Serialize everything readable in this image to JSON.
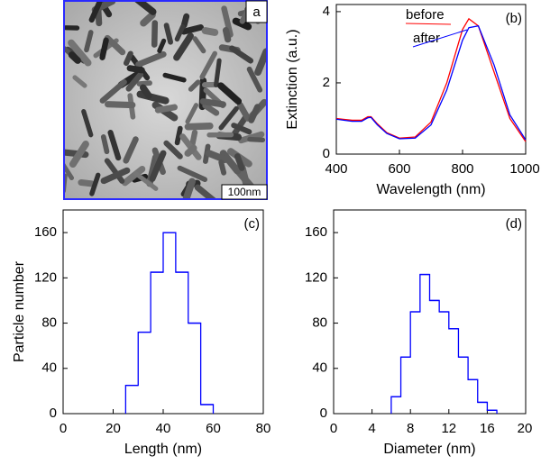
{
  "image": {
    "label": "a",
    "scale_bar": "100nm"
  },
  "chart_data": [
    {
      "type": "line",
      "panel_label": "(b)",
      "xlabel": "Wavelength (nm)",
      "ylabel": "Extinction (a.u.)",
      "x": [
        400,
        450,
        480,
        500,
        510,
        530,
        560,
        600,
        650,
        700,
        750,
        800,
        820,
        850,
        900,
        950,
        1000
      ],
      "series": [
        {
          "name": "before",
          "color": "#ff0000",
          "values": [
            1.0,
            0.95,
            0.95,
            1.05,
            1.05,
            0.85,
            0.6,
            0.45,
            0.48,
            0.9,
            2.0,
            3.5,
            3.8,
            3.6,
            2.3,
            1.0,
            0.35
          ]
        },
        {
          "name": "after",
          "color": "#0000ff",
          "values": [
            0.98,
            0.92,
            0.92,
            1.02,
            1.03,
            0.82,
            0.58,
            0.43,
            0.45,
            0.82,
            1.8,
            3.2,
            3.55,
            3.6,
            2.5,
            1.1,
            0.4
          ]
        }
      ],
      "xlim": [
        400,
        1000
      ],
      "xticks": [
        400,
        600,
        800,
        1000
      ],
      "ylim": [
        0,
        4.2
      ],
      "yticks": [
        0,
        2,
        4
      ]
    },
    {
      "type": "histogram",
      "panel_label": "(c)",
      "xlabel": "Length (nm)",
      "ylabel": "Particle number",
      "color": "#0000ff",
      "bins": [
        25,
        30,
        35,
        40,
        45,
        50,
        55,
        60
      ],
      "values": [
        25,
        72,
        125,
        160,
        125,
        80,
        8
      ],
      "xlim": [
        0,
        80
      ],
      "xticks": [
        0,
        20,
        40,
        60,
        80
      ],
      "ylim": [
        0,
        180
      ],
      "yticks": [
        0,
        40,
        80,
        120,
        160
      ]
    },
    {
      "type": "histogram",
      "panel_label": "(d)",
      "xlabel": "Diameter (nm)",
      "color": "#0000ff",
      "bins": [
        6,
        7,
        8,
        9,
        10,
        11,
        12,
        13,
        14,
        15,
        16,
        17
      ],
      "values": [
        15,
        50,
        90,
        123,
        100,
        90,
        75,
        50,
        30,
        10,
        3
      ],
      "xlim": [
        0,
        20
      ],
      "xticks": [
        0,
        4,
        8,
        12,
        16,
        20
      ],
      "ylim": [
        0,
        180
      ],
      "yticks": [
        0,
        40,
        80,
        120,
        160
      ]
    }
  ]
}
